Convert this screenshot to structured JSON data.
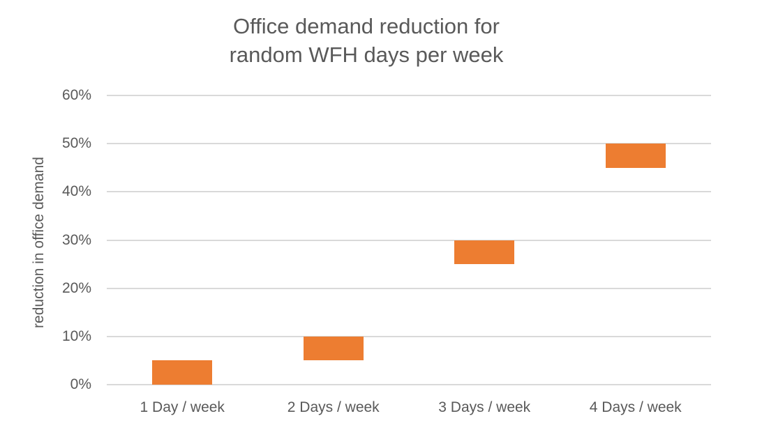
{
  "title": {
    "lines": [
      "Office demand reduction for",
      "random WFH days per week"
    ]
  },
  "chart_data": {
    "type": "bar",
    "subtype": "floating-range-column",
    "title": "Office demand reduction for random WFH days per week",
    "categories": [
      "1 Day / week",
      "2 Days / week",
      "3 Days / week",
      "4 Days / week"
    ],
    "series": [
      {
        "name": "reduction in office demand",
        "ranges_pct": [
          [
            0,
            5
          ],
          [
            5,
            10
          ],
          [
            25,
            30
          ],
          [
            45,
            50
          ]
        ]
      }
    ],
    "xlabel": "",
    "ylabel": "reduction in office demand",
    "ylim": [
      0,
      60
    ],
    "ytick_step": 10,
    "ytick_values": [
      0,
      10,
      20,
      30,
      40,
      50,
      60
    ],
    "ytick_labels": [
      "0%",
      "10%",
      "20%",
      "30%",
      "40%",
      "50%",
      "60%"
    ],
    "grid": true,
    "legend": false
  },
  "colors": {
    "bar": "#ED7D31",
    "gridline": "#D9D9D9",
    "text": "#595959",
    "background": "#FFFFFF"
  }
}
